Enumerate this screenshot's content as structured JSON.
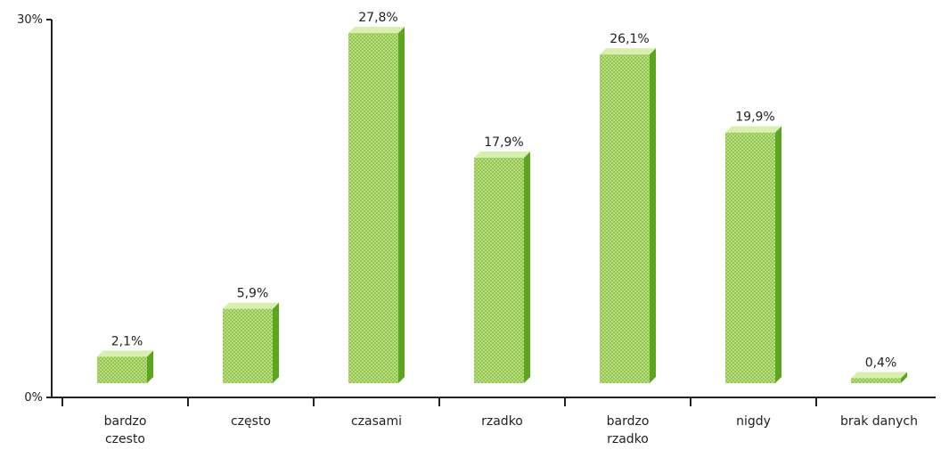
{
  "chart_data": {
    "type": "bar",
    "categories": [
      [
        "bardzo",
        "czesto"
      ],
      [
        "często"
      ],
      [
        "czasami"
      ],
      [
        "rzadko"
      ],
      [
        "bardzo",
        "rzadko"
      ],
      [
        "nigdy"
      ],
      [
        "brak danych"
      ]
    ],
    "values": [
      2.1,
      5.9,
      27.8,
      17.9,
      26.1,
      19.9,
      0.4
    ],
    "value_labels": [
      "2,1%",
      "5,9%",
      "27,8%",
      "17,9%",
      "26,1%",
      "19,9%",
      "0,4%"
    ],
    "y_ticks": [
      {
        "value": 0,
        "label": "0%"
      },
      {
        "value": 30,
        "label": "30%"
      }
    ],
    "ylim": [
      0,
      30
    ],
    "grid": false,
    "legend": "none",
    "colors": {
      "bar_front": "#b7dc7e",
      "bar_dot": "#93c653",
      "bar_side": "#5ca51e",
      "bar_top": "#d8efb0",
      "axis": "#222222",
      "text": "#222222"
    }
  }
}
